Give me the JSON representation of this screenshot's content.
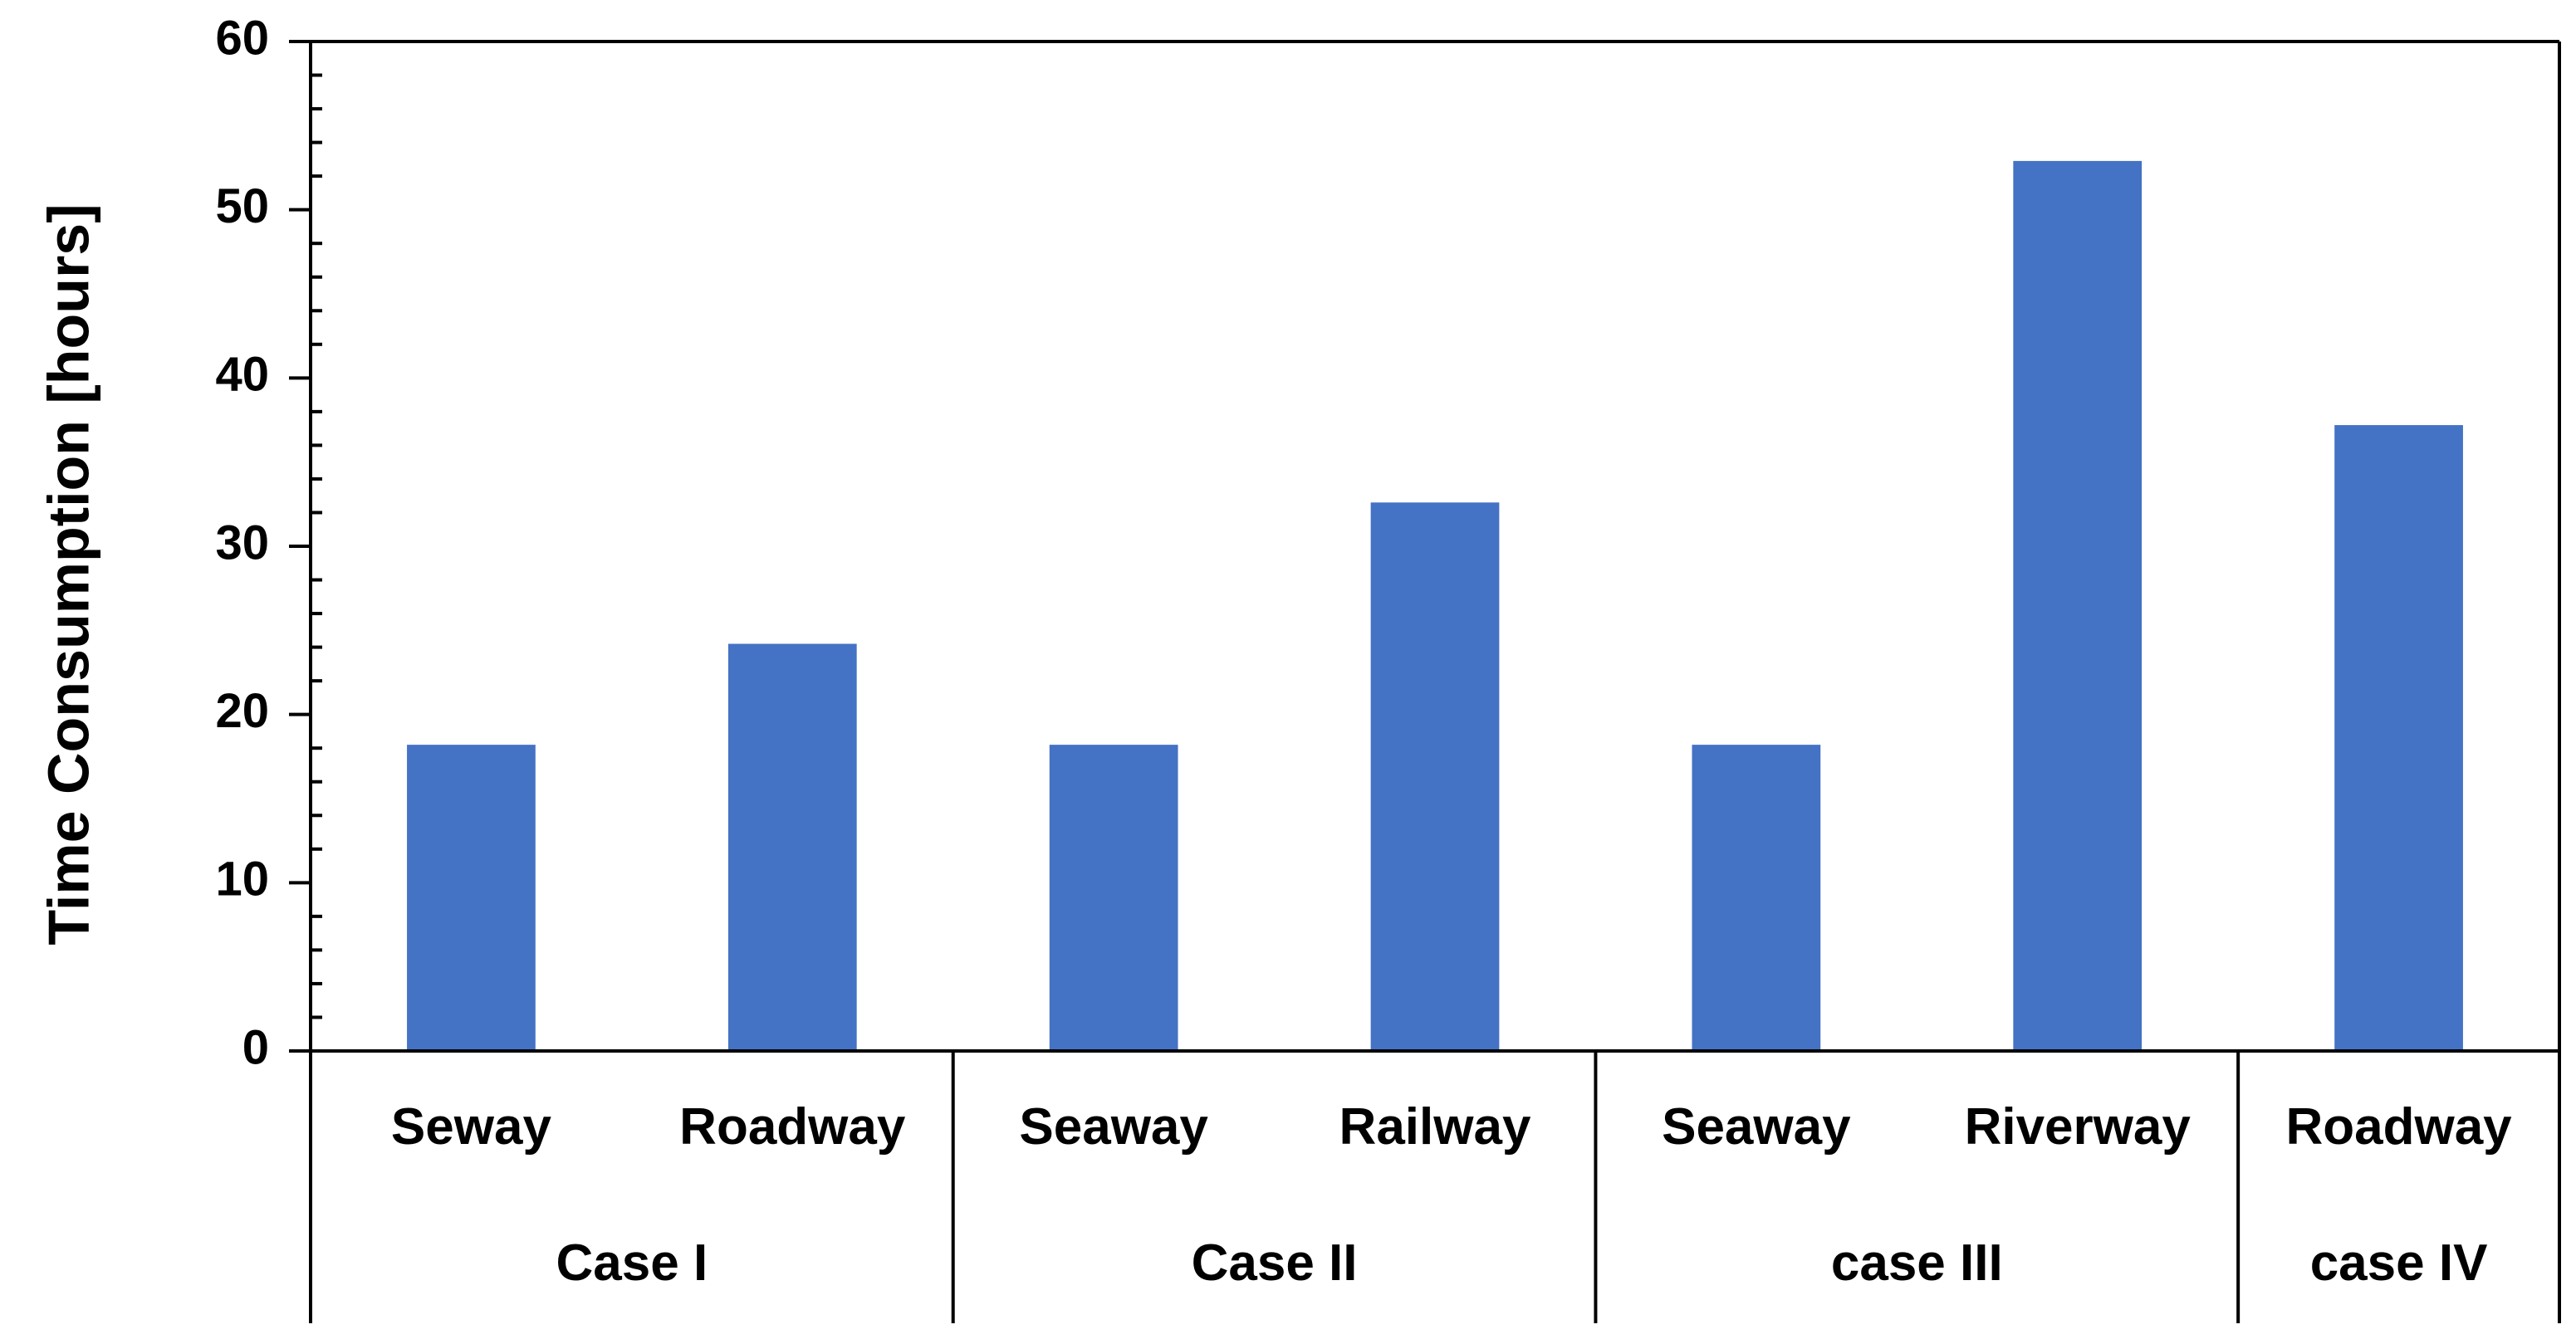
{
  "chart_data": {
    "type": "bar",
    "title": "",
    "ylabel": "Time Consumption [hours]",
    "xlabel": "",
    "ylim": [
      0,
      60
    ],
    "yticks": [
      "0",
      "10",
      "20",
      "30",
      "40",
      "50",
      "60"
    ],
    "grid": false,
    "legend": "none",
    "bar_color": "#4472C4",
    "groups": [
      {
        "label": "Case I",
        "categories": [
          "Seway",
          "Roadway"
        ],
        "values": [
          18.2,
          24.2
        ]
      },
      {
        "label": "Case II",
        "categories": [
          "Seaway",
          "Railway"
        ],
        "values": [
          18.2,
          32.6
        ]
      },
      {
        "label": "case III",
        "categories": [
          "Seaway",
          "Riverway"
        ],
        "values": [
          18.2,
          52.9
        ]
      },
      {
        "label": "case IV",
        "categories": [
          "Roadway"
        ],
        "values": [
          37.2
        ]
      }
    ]
  }
}
